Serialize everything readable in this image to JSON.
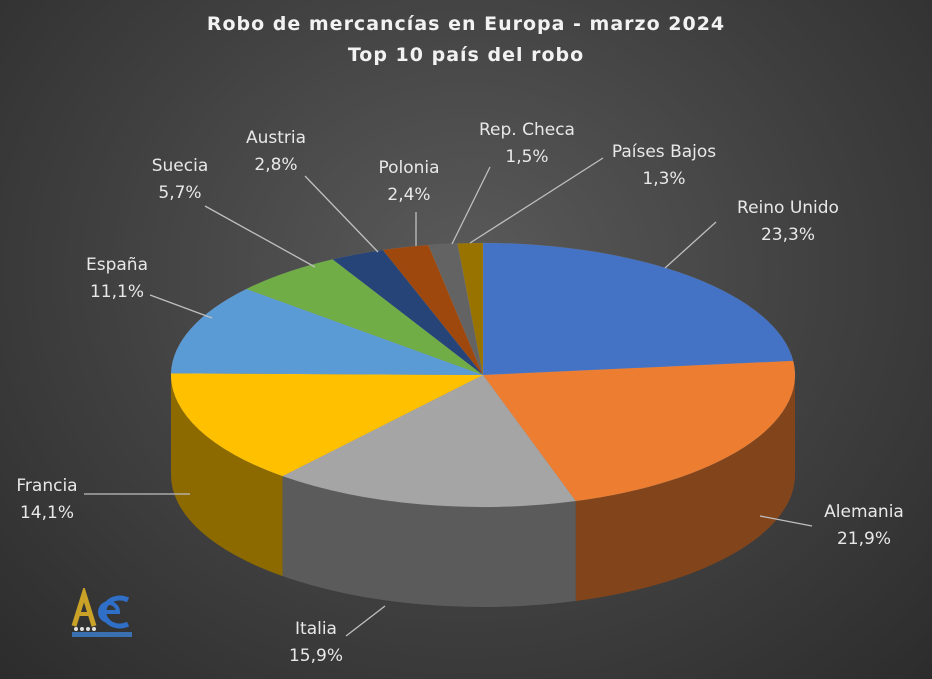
{
  "chart_data": {
    "type": "pie",
    "title": "Robo de mercancías en Europa - marzo 2024",
    "subtitle": "Top 10 país del robo",
    "slices": [
      {
        "label": "Reino Unido",
        "value": 23.3,
        "text": "23,3%",
        "color": "#4472c4"
      },
      {
        "label": "Alemania",
        "value": 21.9,
        "text": "21,9%",
        "color": "#ed7d31"
      },
      {
        "label": "Italia",
        "value": 15.9,
        "text": "15,9%",
        "color": "#a5a5a5"
      },
      {
        "label": "Francia",
        "value": 14.1,
        "text": "14,1%",
        "color": "#ffc000"
      },
      {
        "label": "España",
        "value": 11.1,
        "text": "11,1%",
        "color": "#5b9bd5"
      },
      {
        "label": "Suecia",
        "value": 5.7,
        "text": "5,7%",
        "color": "#70ad47"
      },
      {
        "label": "Austria",
        "value": 2.8,
        "text": "2,8%",
        "color": "#264478"
      },
      {
        "label": "Polonia",
        "value": 2.4,
        "text": "2,4%",
        "color": "#9e480e"
      },
      {
        "label": "Rep. Checa",
        "value": 1.5,
        "text": "1,5%",
        "color": "#636363"
      },
      {
        "label": "Países Bajos",
        "value": 1.3,
        "text": "1,3%",
        "color": "#997300"
      }
    ]
  },
  "logo": {
    "text": "AeC"
  }
}
